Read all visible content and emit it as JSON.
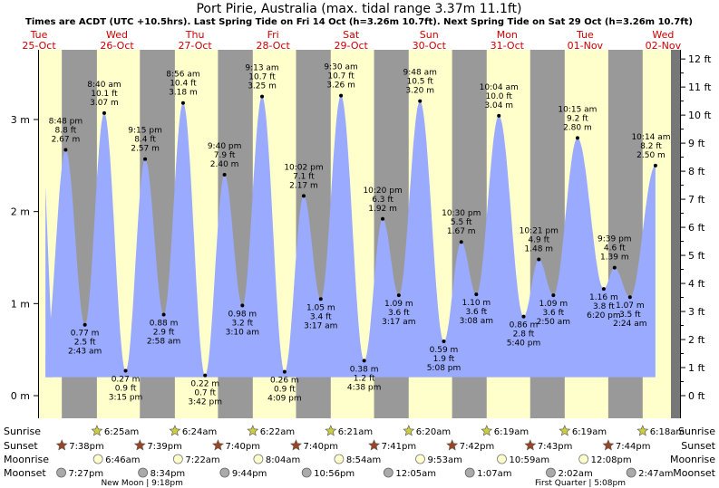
{
  "title": "Port Pirie, Australia (max. tidal range 3.37m 11.1ft)",
  "subtitle": "Times are ACDT (UTC +10.5hrs). Last Spring Tide on Fri 14 Oct (h=3.26m 10.7ft). Next Spring Tide on Sat 29 Oct (h=3.26m 10.7ft)",
  "colors": {
    "day": "#ffffcc",
    "night": "#999999",
    "water": "#99aaff",
    "date": "#cc0000",
    "edge": "#777777"
  },
  "chart_data": {
    "type": "area",
    "ylabel_m": [
      "0 m",
      "1 m",
      "2 m",
      "3 m"
    ],
    "ylabel_ft": [
      "0 ft",
      "1 ft",
      "2 ft",
      "3 ft",
      "4 ft",
      "5 ft",
      "6 ft",
      "7 ft",
      "8 ft",
      "9 ft",
      "10 ft",
      "11 ft",
      "12 ft"
    ],
    "ylim_m": [
      -0.06,
      3.56
    ],
    "days": [
      {
        "dow": "Tue",
        "date": "25-Oct"
      },
      {
        "dow": "Wed",
        "date": "26-Oct"
      },
      {
        "dow": "Thu",
        "date": "27-Oct"
      },
      {
        "dow": "Fri",
        "date": "28-Oct"
      },
      {
        "dow": "Sat",
        "date": "29-Oct"
      },
      {
        "dow": "Sun",
        "date": "30-Oct"
      },
      {
        "dow": "Mon",
        "date": "31-Oct"
      },
      {
        "dow": "Tue",
        "date": "01-Nov"
      },
      {
        "dow": "Wed",
        "date": "02-Nov"
      }
    ],
    "tides": [
      {
        "h": 2.67,
        "time": "8:48 pm",
        "ft": "8.8 ft",
        "m": "2.67 m",
        "type": "high"
      },
      {
        "h": 0.77,
        "time": "2:43 am",
        "ft": "2.5 ft",
        "m": "0.77 m",
        "type": "low"
      },
      {
        "h": 3.07,
        "time": "8:40 am",
        "ft": "10.1 ft",
        "m": "3.07 m",
        "type": "high"
      },
      {
        "h": 0.27,
        "time": "3:15 pm",
        "ft": "0.9 ft",
        "m": "0.27 m",
        "type": "low"
      },
      {
        "h": 2.57,
        "time": "9:15 pm",
        "ft": "8.4 ft",
        "m": "2.57 m",
        "type": "high"
      },
      {
        "h": 0.88,
        "time": "2:58 am",
        "ft": "2.9 ft",
        "m": "0.88 m",
        "type": "low"
      },
      {
        "h": 3.18,
        "time": "8:56 am",
        "ft": "10.4 ft",
        "m": "3.18 m",
        "type": "high"
      },
      {
        "h": 0.22,
        "time": "3:42 pm",
        "ft": "0.7 ft",
        "m": "0.22 m",
        "type": "low"
      },
      {
        "h": 2.4,
        "time": "9:40 pm",
        "ft": "7.9 ft",
        "m": "2.40 m",
        "type": "high"
      },
      {
        "h": 0.98,
        "time": "3:10 am",
        "ft": "3.2 ft",
        "m": "0.98 m",
        "type": "low"
      },
      {
        "h": 3.25,
        "time": "9:13 am",
        "ft": "10.7 ft",
        "m": "3.25 m",
        "type": "high"
      },
      {
        "h": 0.26,
        "time": "4:09 pm",
        "ft": "0.9 ft",
        "m": "0.26 m",
        "type": "low"
      },
      {
        "h": 2.17,
        "time": "10:02 pm",
        "ft": "7.1 ft",
        "m": "2.17 m",
        "type": "high"
      },
      {
        "h": 1.05,
        "time": "3:17 am",
        "ft": "3.4 ft",
        "m": "1.05 m",
        "type": "low"
      },
      {
        "h": 3.26,
        "time": "9:30 am",
        "ft": "10.7 ft",
        "m": "3.26 m",
        "type": "high"
      },
      {
        "h": 0.38,
        "time": "4:38 pm",
        "ft": "1.2 ft",
        "m": "0.38 m",
        "type": "low"
      },
      {
        "h": 1.92,
        "time": "10:20 pm",
        "ft": "6.3 ft",
        "m": "1.92 m",
        "type": "high"
      },
      {
        "h": 1.09,
        "time": "3:17 am",
        "ft": "3.6 ft",
        "m": "1.09 m",
        "type": "low"
      },
      {
        "h": 3.2,
        "time": "9:48 am",
        "ft": "10.5 ft",
        "m": "3.20 m",
        "type": "high"
      },
      {
        "h": 0.59,
        "time": "5:08 pm",
        "ft": "1.9 ft",
        "m": "0.59 m",
        "type": "low"
      },
      {
        "h": 1.67,
        "time": "10:30 pm",
        "ft": "5.5 ft",
        "m": "1.67 m",
        "type": "high"
      },
      {
        "h": 1.1,
        "time": "3:08 am",
        "ft": "3.6 ft",
        "m": "1.10 m",
        "type": "low"
      },
      {
        "h": 3.04,
        "time": "10:04 am",
        "ft": "10.0 ft",
        "m": "3.04 m",
        "type": "high"
      },
      {
        "h": 0.86,
        "time": "5:40 pm",
        "ft": "2.8 ft",
        "m": "0.86 m",
        "type": "low"
      },
      {
        "h": 1.48,
        "time": "10:21 pm",
        "ft": "4.9 ft",
        "m": "1.48 m",
        "type": "high"
      },
      {
        "h": 1.09,
        "time": "2:50 am",
        "ft": "3.6 ft",
        "m": "1.09 m",
        "type": "low"
      },
      {
        "h": 2.8,
        "time": "10:15 am",
        "ft": "9.2 ft",
        "m": "2.80 m",
        "type": "high"
      },
      {
        "h": 1.16,
        "time": "6:20 pm",
        "ft": "3.8 ft",
        "m": "1.16 m",
        "type": "low"
      },
      {
        "h": 1.39,
        "time": "9:39 pm",
        "ft": "4.6 ft",
        "m": "1.39 m",
        "type": "high"
      },
      {
        "h": 1.07,
        "time": "2:24 am",
        "ft": "3.5 ft",
        "m": "1.07 m",
        "type": "low"
      },
      {
        "h": 2.5,
        "time": "10:14 am",
        "ft": "8.2 ft",
        "m": "2.50 m",
        "type": "high"
      }
    ]
  },
  "astro": {
    "row_labels": [
      "Sunrise",
      "Sunset",
      "Moonrise",
      "Moonset"
    ],
    "sunrise": [
      "6:25am",
      "6:24am",
      "6:22am",
      "6:21am",
      "6:20am",
      "6:19am",
      "6:19am",
      "6:18am"
    ],
    "sunset": [
      "7:38pm",
      "7:39pm",
      "7:40pm",
      "7:40pm",
      "7:41pm",
      "7:42pm",
      "7:43pm",
      "7:44pm"
    ],
    "moonrise": [
      "6:46am",
      "7:22am",
      "8:04am",
      "8:54am",
      "9:53am",
      "10:59am",
      "12:08pm"
    ],
    "moonset": [
      "7:27pm",
      "8:34pm",
      "9:44pm",
      "10:56pm",
      "12:05am",
      "1:07am",
      "2:02am",
      "2:47am"
    ],
    "phases": [
      {
        "label": "New Moon",
        "time": "9:18pm"
      },
      {
        "label": "First Quarter",
        "time": "5:08pm"
      }
    ]
  }
}
